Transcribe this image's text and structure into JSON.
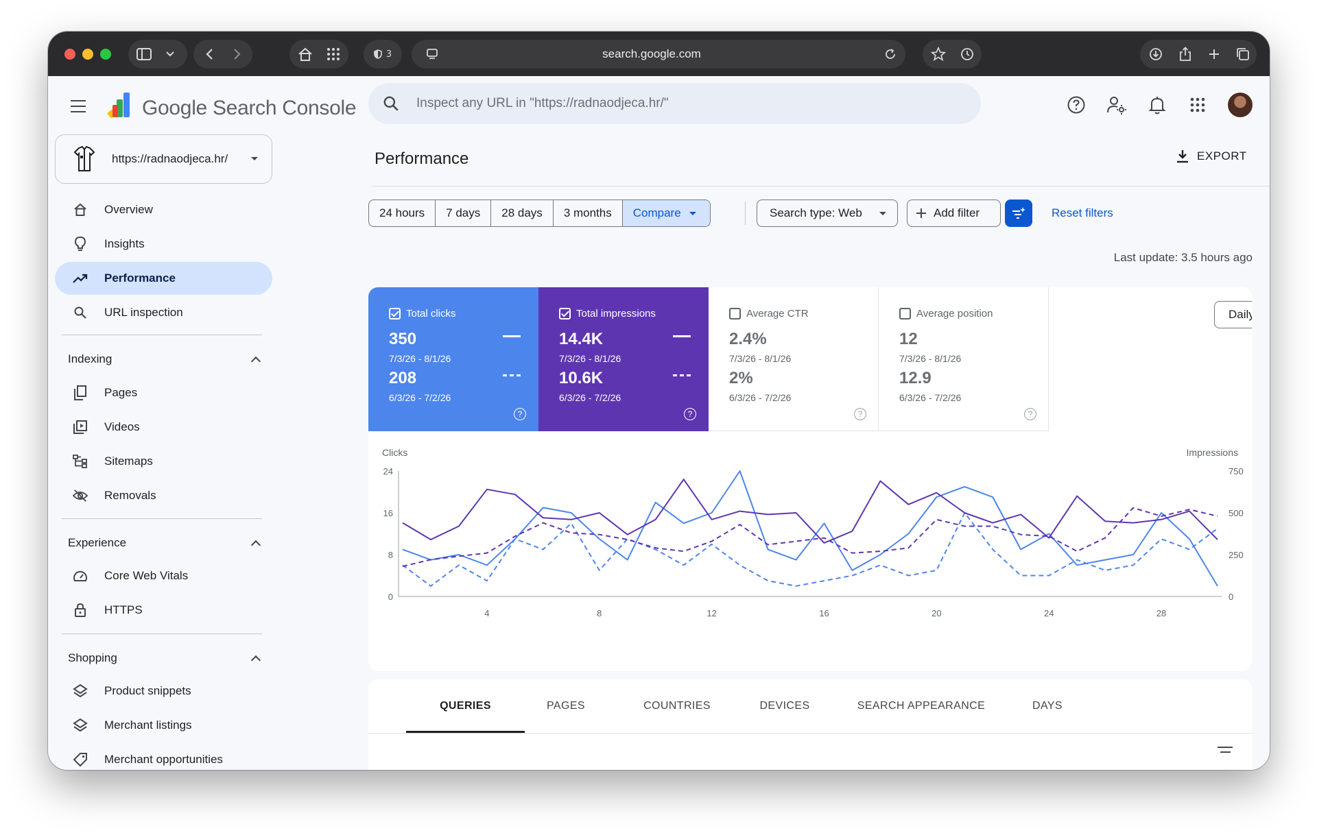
{
  "browser": {
    "url": "search.google.com",
    "tracker_count": "3"
  },
  "header": {
    "product_name": "Google Search Console",
    "search_placeholder": "Inspect any URL in \"https://radnaodjeca.hr/\""
  },
  "sidebar": {
    "property": "https://radnaodjeca.hr/",
    "top_items": [
      {
        "label": "Overview",
        "icon": "home-icon"
      },
      {
        "label": "Insights",
        "icon": "lightbulb-icon"
      },
      {
        "label": "Performance",
        "icon": "trending-up-icon",
        "active": true
      },
      {
        "label": "URL inspection",
        "icon": "search-icon"
      }
    ],
    "sections": [
      {
        "title": "Indexing",
        "items": [
          {
            "label": "Pages",
            "icon": "pages-icon"
          },
          {
            "label": "Videos",
            "icon": "video-icon"
          },
          {
            "label": "Sitemaps",
            "icon": "sitemap-icon"
          },
          {
            "label": "Removals",
            "icon": "eye-off-icon"
          }
        ]
      },
      {
        "title": "Experience",
        "items": [
          {
            "label": "Core Web Vitals",
            "icon": "gauge-icon"
          },
          {
            "label": "HTTPS",
            "icon": "lock-icon"
          }
        ]
      },
      {
        "title": "Shopping",
        "items": [
          {
            "label": "Product snippets",
            "icon": "diamond-icon"
          },
          {
            "label": "Merchant listings",
            "icon": "diamond-icon"
          },
          {
            "label": "Merchant opportunities",
            "icon": "tag-icon"
          }
        ]
      }
    ]
  },
  "main": {
    "title": "Performance",
    "export_label": "EXPORT",
    "date_ranges": [
      "24 hours",
      "7 days",
      "28 days",
      "3 months",
      "Compare"
    ],
    "selected_range": "Compare",
    "search_type": "Search type: Web",
    "add_filter": "Add filter",
    "reset_filters": "Reset filters",
    "last_update": "Last update: 3.5 hours ago",
    "granularity": "Daily"
  },
  "metrics": [
    {
      "label": "Total clicks",
      "checked": true,
      "current": "350",
      "current_range": "7/3/26 - 8/1/26",
      "previous": "208",
      "previous_range": "6/3/26 - 7/2/26",
      "color": "#4c85ec"
    },
    {
      "label": "Total impressions",
      "checked": true,
      "current": "14.4K",
      "current_range": "7/3/26 - 8/1/26",
      "previous": "10.6K",
      "previous_range": "6/3/26 - 7/2/26",
      "color": "#5e35b1"
    },
    {
      "label": "Average CTR",
      "checked": false,
      "current": "2.4%",
      "current_range": "7/3/26 - 8/1/26",
      "previous": "2%",
      "previous_range": "6/3/26 - 7/2/26"
    },
    {
      "label": "Average position",
      "checked": false,
      "current": "12",
      "current_range": "7/3/26 - 8/1/26",
      "previous": "12.9",
      "previous_range": "6/3/26 - 7/2/26"
    }
  ],
  "chart_data": {
    "type": "line",
    "ylabel_left": "Clicks",
    "ylabel_right": "Impressions",
    "ylim_left": [
      0,
      24
    ],
    "ylim_right": [
      0,
      750
    ],
    "yticks_left": [
      0,
      8,
      16,
      24
    ],
    "yticks_right": [
      0,
      250,
      500,
      750
    ],
    "x": [
      1,
      2,
      3,
      4,
      5,
      6,
      7,
      8,
      9,
      10,
      11,
      12,
      13,
      14,
      15,
      16,
      17,
      18,
      19,
      20,
      21,
      22,
      23,
      24,
      25,
      26,
      27,
      28,
      29,
      30
    ],
    "xticks": [
      4,
      8,
      12,
      16,
      20,
      24,
      28
    ],
    "series": [
      {
        "axis": "left",
        "style": "solid",
        "color": "#4c85ec",
        "values": [
          9,
          7,
          8,
          6,
          11,
          17,
          16,
          11,
          7,
          18,
          14,
          16,
          24,
          9,
          7,
          14,
          5,
          8,
          12,
          19,
          21,
          19,
          9,
          12,
          6,
          7,
          8,
          16,
          11,
          2
        ]
      },
      {
        "axis": "left",
        "style": "dashed",
        "color": "#4c85ec",
        "values": [
          6,
          2,
          6,
          3,
          11,
          9,
          14,
          5,
          11,
          9,
          6,
          10,
          6,
          3,
          2,
          3,
          4,
          6,
          4,
          5,
          16,
          9,
          4,
          4,
          7,
          5,
          6,
          11,
          9,
          13
        ]
      },
      {
        "axis": "right",
        "style": "solid",
        "color": "#5e35b1",
        "values": [
          440,
          340,
          420,
          640,
          610,
          470,
          460,
          500,
          370,
          460,
          700,
          460,
          510,
          490,
          500,
          320,
          390,
          690,
          550,
          620,
          500,
          440,
          490,
          350,
          600,
          450,
          440,
          460,
          510,
          340
        ]
      },
      {
        "axis": "right",
        "style": "dashed",
        "color": "#5e35b1",
        "values": [
          180,
          220,
          240,
          260,
          360,
          440,
          380,
          370,
          340,
          290,
          270,
          330,
          430,
          310,
          330,
          350,
          260,
          270,
          290,
          460,
          420,
          420,
          370,
          360,
          270,
          350,
          530,
          480,
          520,
          480
        ]
      }
    ]
  },
  "tabs": [
    "QUERIES",
    "PAGES",
    "COUNTRIES",
    "DEVICES",
    "SEARCH APPEARANCE",
    "DAYS"
  ]
}
